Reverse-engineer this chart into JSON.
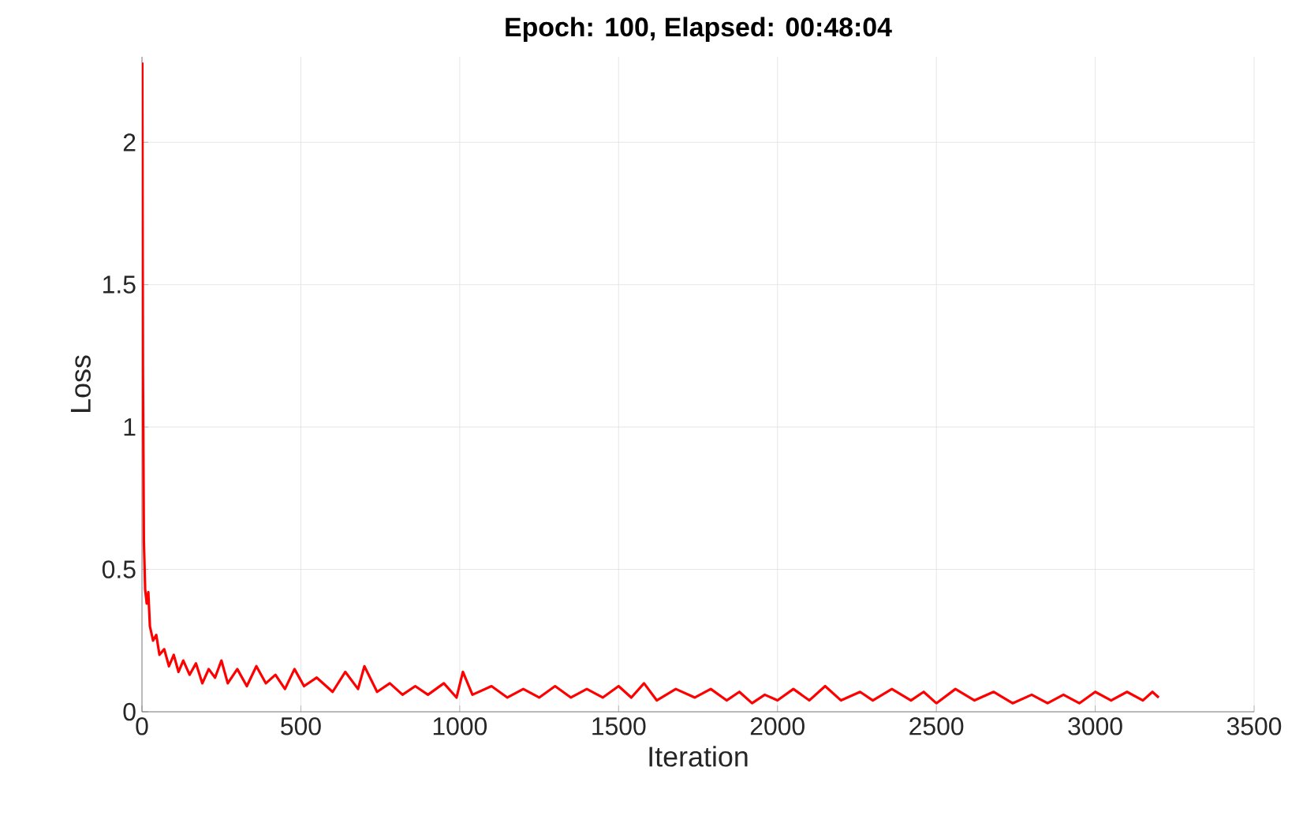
{
  "chart_data": {
    "type": "line",
    "title": "Epoch: 100, Elapsed: 00:48:04",
    "xlabel": "Iteration",
    "ylabel": "Loss",
    "xlim": [
      0,
      3500
    ],
    "ylim": [
      0,
      2.3
    ],
    "xticks": [
      0,
      500,
      1000,
      1500,
      2000,
      2500,
      3000,
      3500
    ],
    "yticks": [
      0,
      0.5,
      1,
      1.5,
      2
    ],
    "grid": true,
    "series": [
      {
        "color": "#ff0000",
        "x": [
          1,
          3,
          6,
          10,
          15,
          20,
          25,
          35,
          45,
          55,
          70,
          85,
          100,
          115,
          130,
          150,
          170,
          190,
          210,
          230,
          250,
          270,
          300,
          330,
          360,
          390,
          420,
          450,
          480,
          510,
          550,
          600,
          640,
          680,
          700,
          740,
          780,
          820,
          860,
          900,
          950,
          990,
          1010,
          1040,
          1100,
          1150,
          1200,
          1250,
          1300,
          1350,
          1400,
          1450,
          1500,
          1540,
          1580,
          1620,
          1680,
          1740,
          1790,
          1840,
          1880,
          1920,
          1960,
          2000,
          2050,
          2100,
          2150,
          2200,
          2260,
          2300,
          2360,
          2420,
          2460,
          2500,
          2560,
          2620,
          2680,
          2740,
          2800,
          2850,
          2900,
          2950,
          3000,
          3050,
          3100,
          3150,
          3180,
          3200
        ],
        "values": [
          2.28,
          1.2,
          0.6,
          0.43,
          0.38,
          0.42,
          0.3,
          0.25,
          0.27,
          0.2,
          0.22,
          0.16,
          0.2,
          0.14,
          0.18,
          0.13,
          0.17,
          0.1,
          0.15,
          0.12,
          0.18,
          0.1,
          0.15,
          0.09,
          0.16,
          0.1,
          0.13,
          0.08,
          0.15,
          0.09,
          0.12,
          0.07,
          0.14,
          0.08,
          0.16,
          0.07,
          0.1,
          0.06,
          0.09,
          0.06,
          0.1,
          0.05,
          0.14,
          0.06,
          0.09,
          0.05,
          0.08,
          0.05,
          0.09,
          0.05,
          0.08,
          0.05,
          0.09,
          0.05,
          0.1,
          0.04,
          0.08,
          0.05,
          0.08,
          0.04,
          0.07,
          0.03,
          0.06,
          0.04,
          0.08,
          0.04,
          0.09,
          0.04,
          0.07,
          0.04,
          0.08,
          0.04,
          0.07,
          0.03,
          0.08,
          0.04,
          0.07,
          0.03,
          0.06,
          0.03,
          0.06,
          0.03,
          0.07,
          0.04,
          0.07,
          0.04,
          0.07,
          0.05
        ]
      }
    ]
  }
}
